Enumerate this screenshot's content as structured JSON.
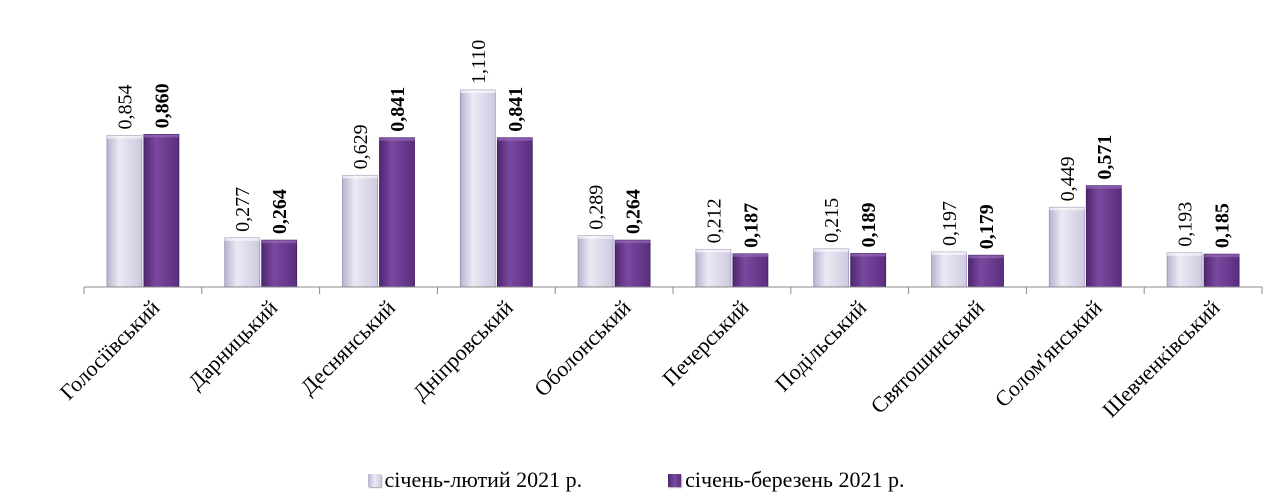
{
  "chart_data": {
    "type": "bar",
    "categories": [
      "Голосіївський",
      "Дарницький",
      "Деснянський",
      "Дніпровський",
      "Оболонський",
      "Печерський",
      "Подільський",
      "Святошинський",
      "Солом'янський",
      "Шевченківський"
    ],
    "series": [
      {
        "name": "січень-лютий 2021 р.",
        "values": [
          0.854,
          0.277,
          0.629,
          1.11,
          0.289,
          0.212,
          0.215,
          0.197,
          0.449,
          0.193
        ],
        "labels": [
          "0,854",
          "0,277",
          "0,629",
          "1,110",
          "0,289",
          "0,212",
          "0,215",
          "0,197",
          "0,449",
          "0,193"
        ],
        "color": "#d6d1e6"
      },
      {
        "name": "січень-березень 2021 р.",
        "values": [
          0.86,
          0.264,
          0.841,
          0.841,
          0.264,
          0.187,
          0.189,
          0.179,
          0.571,
          0.185
        ],
        "labels": [
          "0,860",
          "0,264",
          "0,841",
          "0,841",
          "0,264",
          "0,187",
          "0,189",
          "0,179",
          "0,571",
          "0,185"
        ],
        "color": "#6a3a8f"
      }
    ],
    "ylim": [
      0,
      1.11
    ],
    "grid": false,
    "legend_position": "bottom"
  },
  "legend": {
    "series1_label": "січень-лютий 2021 р.",
    "series2_label": "січень-березень 2021 р."
  }
}
